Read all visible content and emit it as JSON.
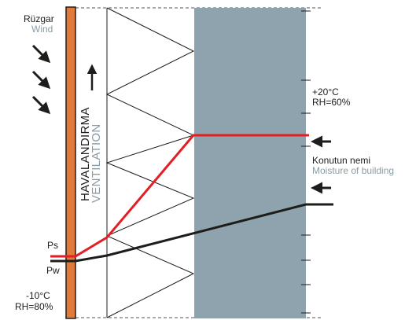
{
  "wind": {
    "tr": "Rüzgar",
    "en": "Wind"
  },
  "ventilation": {
    "tr": "HAVALANDIRMA",
    "en": "VENTILATION"
  },
  "inside": {
    "temp": "+20°C",
    "rh": "RH=60%"
  },
  "outside": {
    "temp": "-10°C",
    "rh": "RH=80%"
  },
  "moisture": {
    "tr": "Konutun nemi",
    "en": "Moisture of building"
  },
  "curves": {
    "ps_label": "Ps",
    "pw_label": "Pw"
  },
  "colors": {
    "cladding": "#e07b39",
    "insulation_panel": "#8fa3ae",
    "ps_curve": "#e31e24",
    "pw_curve": "#1d1d1b",
    "secondary_text": "#8a9ba6"
  },
  "icons": {
    "wind_arrows": "arrow-down-right",
    "airflow_arrow": "arrow-up",
    "moisture_arrows": "arrow-left"
  }
}
